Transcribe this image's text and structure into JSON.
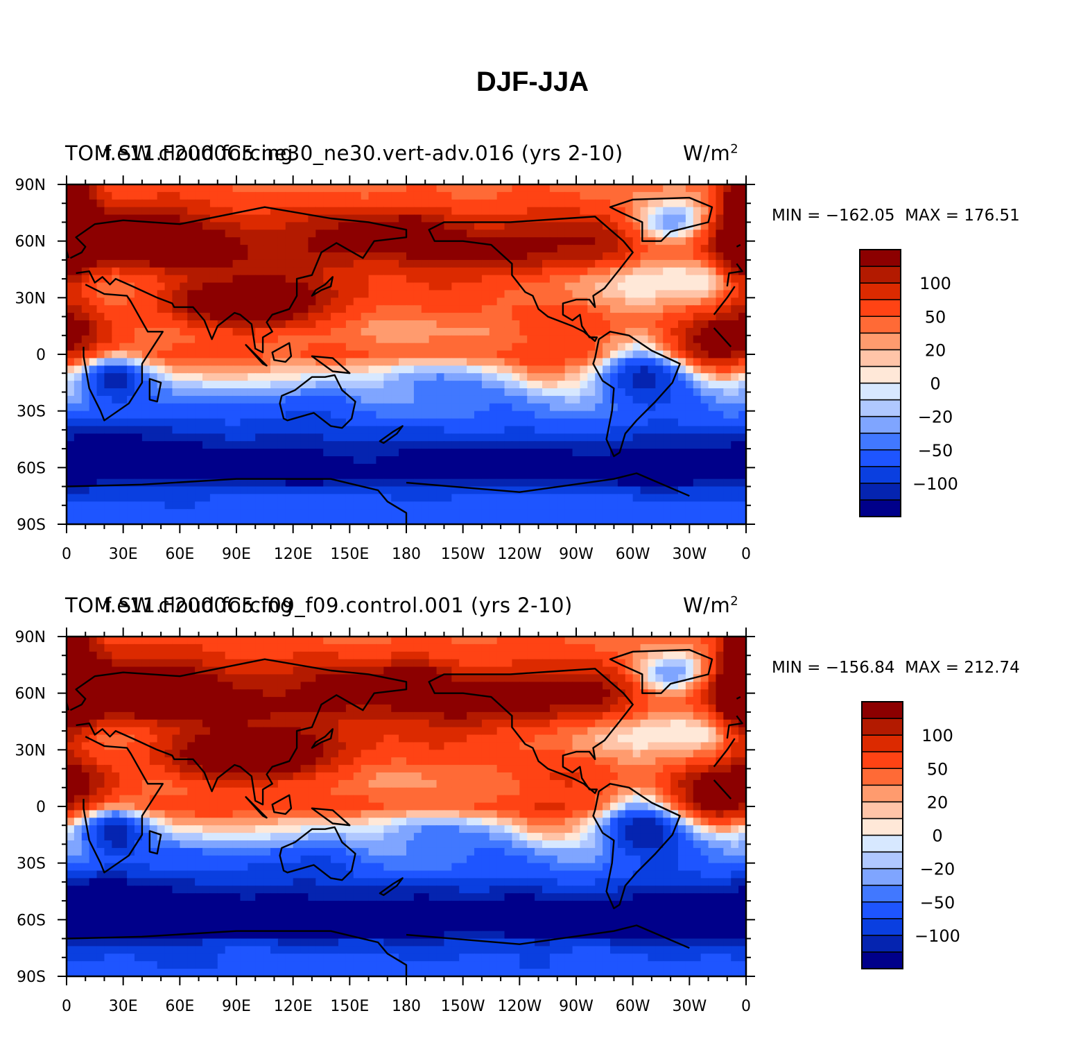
{
  "figure": {
    "title": "DJF-JJA"
  },
  "colors": {
    "levels": [
      "#00008a",
      "#0524b0",
      "#0a3fe0",
      "#1e55ff",
      "#4178ff",
      "#7fa5ff",
      "#b0c8ff",
      "#d7e8ff",
      "#ffe8d8",
      "#ffc4a8",
      "#ff9b6e",
      "#ff6a36",
      "#ff4314",
      "#dc2a00",
      "#b31a00",
      "#8c0000"
    ],
    "coastline": "#000000"
  },
  "chart_data": [
    {
      "type": "heatmap",
      "title": "TOM SW cloud forcing",
      "case": "f.e11.F2000C5.ne30_ne30.vert-adv.016 (yrs 2-10)",
      "units": "W/m",
      "units_exp": "2",
      "min_label": "MIN = −162.05",
      "max_label": "MAX = 176.51",
      "min": -162.05,
      "max": 176.51,
      "x_ticks": [
        "0",
        "30E",
        "60E",
        "90E",
        "120E",
        "150E",
        "180",
        "150W",
        "120W",
        "90W",
        "60W",
        "30W",
        "0"
      ],
      "y_ticks": [
        "90N",
        "60N",
        "30N",
        "0",
        "30S",
        "60S",
        "90S"
      ],
      "xlim": [
        0,
        360
      ],
      "ylim": [
        -90,
        90
      ],
      "colorbar_labels": [
        "100",
        "50",
        "20",
        "0",
        "−20",
        "−50",
        "−100"
      ],
      "colorbar_bins": 16
    },
    {
      "type": "heatmap",
      "title": "TOM SW cloud forcing",
      "case": "f.e11.F2000C5.f09_f09.control.001 (yrs 2-10)",
      "units": "W/m",
      "units_exp": "2",
      "min_label": "MIN = −156.84",
      "max_label": "MAX = 212.74",
      "min": -156.84,
      "max": 212.74,
      "x_ticks": [
        "0",
        "30E",
        "60E",
        "90E",
        "120E",
        "150E",
        "180",
        "150W",
        "120W",
        "90W",
        "60W",
        "30W",
        "0"
      ],
      "y_ticks": [
        "90N",
        "60N",
        "30N",
        "0",
        "30S",
        "60S",
        "90S"
      ],
      "xlim": [
        0,
        360
      ],
      "ylim": [
        -90,
        90
      ],
      "colorbar_labels": [
        "100",
        "50",
        "20",
        "0",
        "−20",
        "−50",
        "−100"
      ],
      "colorbar_bins": 16
    }
  ]
}
